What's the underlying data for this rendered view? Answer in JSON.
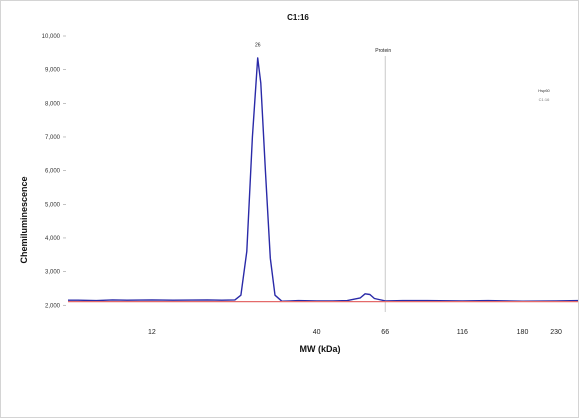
{
  "chart_data": {
    "type": "line",
    "title": "C1:16",
    "xlabel": "MW (kDa)",
    "ylabel": "Chemiluminescence",
    "x_scale": "log",
    "xlim": [
      6.5,
      270
    ],
    "ylim": [
      1800,
      10000
    ],
    "x_ticks": [
      12,
      40,
      66,
      116,
      180,
      230
    ],
    "y_ticks": [
      {
        "value": 2000,
        "label": "2,000"
      },
      {
        "value": 3000,
        "label": "3,000"
      },
      {
        "value": 4000,
        "label": "4,000"
      },
      {
        "value": 5000,
        "label": "5,000"
      },
      {
        "value": 6000,
        "label": "6,000"
      },
      {
        "value": 7000,
        "label": "7,000"
      },
      {
        "value": 8000,
        "label": "8,000"
      },
      {
        "value": 9000,
        "label": "9,000"
      },
      {
        "value": 10000,
        "label": "10,000"
      }
    ],
    "peak_label": {
      "text": "26",
      "x": 26,
      "y": 9450
    },
    "marker_line": {
      "label": "Protein",
      "x": 66
    },
    "legend": {
      "line1": "Hsp60",
      "line2": "C1:16",
      "placement": "top-right"
    },
    "series": [
      {
        "color": "#2a2aa8",
        "points": [
          [
            6.5,
            2150
          ],
          [
            7,
            2150
          ],
          [
            8,
            2140
          ],
          [
            9,
            2160
          ],
          [
            10,
            2150
          ],
          [
            11,
            2155
          ],
          [
            12,
            2160
          ],
          [
            14,
            2150
          ],
          [
            16,
            2155
          ],
          [
            18,
            2160
          ],
          [
            20,
            2150
          ],
          [
            21,
            2155
          ],
          [
            22,
            2160
          ],
          [
            23,
            2300
          ],
          [
            24,
            3600
          ],
          [
            25,
            7000
          ],
          [
            26,
            9350
          ],
          [
            26.6,
            8600
          ],
          [
            27.5,
            6000
          ],
          [
            28.5,
            3400
          ],
          [
            29.5,
            2300
          ],
          [
            31,
            2120
          ],
          [
            33,
            2130
          ],
          [
            35,
            2140
          ],
          [
            40,
            2130
          ],
          [
            45,
            2130
          ],
          [
            50,
            2140
          ],
          [
            55,
            2220
          ],
          [
            57,
            2340
          ],
          [
            59,
            2320
          ],
          [
            61,
            2200
          ],
          [
            66,
            2130
          ],
          [
            75,
            2140
          ],
          [
            90,
            2140
          ],
          [
            116,
            2130
          ],
          [
            140,
            2140
          ],
          [
            180,
            2120
          ],
          [
            230,
            2130
          ],
          [
            270,
            2140
          ]
        ]
      },
      {
        "color": "#e46a6a",
        "points": [
          [
            6.5,
            2110
          ],
          [
            270,
            2110
          ]
        ]
      }
    ]
  }
}
